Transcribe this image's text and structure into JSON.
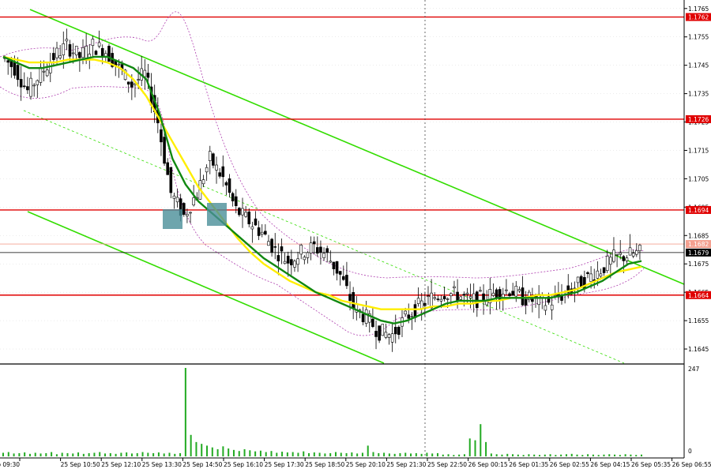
{
  "chart_data": {
    "type": "candlestick",
    "price_axis": {
      "ylim": [
        1.164,
        1.1768
      ],
      "ticks": [
        "1.1765",
        "1.1755",
        "1.1745",
        "1.1735",
        "1.1725",
        "1.1715",
        "1.1705",
        "1.1695",
        "1.1685",
        "1.1675",
        "1.1665",
        "1.1655",
        "1.1645"
      ],
      "tick_values": [
        1.1765,
        1.1755,
        1.1745,
        1.1735,
        1.1725,
        1.1715,
        1.1705,
        1.1695,
        1.1685,
        1.1675,
        1.1665,
        1.1655,
        1.1645
      ]
    },
    "time_axis": {
      "labels": [
        "25 Sep 09:30",
        "25 Sep 10:50",
        "25 Sep 12:10",
        "25 Sep 13:30",
        "25 Sep 14:50",
        "25 Sep 16:10",
        "25 Sep 17:30",
        "25 Sep 18:50",
        "25 Sep 20:10",
        "25 Sep 21:30",
        "25 Sep 22:50",
        "26 Sep 00:15",
        "26 Sep 01:35",
        "26 Sep 02:55",
        "26 Sep 04:15",
        "26 Sep 05:35",
        "26 Sep 06:55"
      ]
    },
    "levels": [
      {
        "label": "1.1762",
        "value": 1.1762,
        "color": "#e00000"
      },
      {
        "label": "1.1726",
        "value": 1.1726,
        "color": "#e00000"
      },
      {
        "label": "1.1694",
        "value": 1.1694,
        "color": "#e00000"
      },
      {
        "label": "1.1664",
        "value": 1.1664,
        "color": "#e00000"
      }
    ],
    "current_levels": [
      {
        "label": "1.1682",
        "value": 1.1682,
        "color": "#f4a090"
      },
      {
        "label": "1.1679",
        "value": 1.1679,
        "color": "#000000"
      }
    ],
    "price_series": [
      1.1748,
      1.1744,
      1.1736,
      1.1742,
      1.1748,
      1.1752,
      1.1748,
      1.1752,
      1.175,
      1.1744,
      1.1738,
      1.1742,
      1.1725,
      1.17,
      1.1692,
      1.17,
      1.1712,
      1.1705,
      1.1694,
      1.169,
      1.1686,
      1.168,
      1.1676,
      1.1679,
      1.1681,
      1.1678,
      1.1671,
      1.166,
      1.1656,
      1.1651,
      1.165,
      1.1656,
      1.166,
      1.1663,
      1.1665,
      1.1664,
      1.1662,
      1.1663,
      1.1665,
      1.1666,
      1.1663,
      1.1662,
      1.1661,
      1.1664,
      1.1667,
      1.167,
      1.1673,
      1.1677,
      1.1678,
      1.1679
    ],
    "fast_ma_series": [
      1.1748,
      1.1746,
      1.1744,
      1.1744,
      1.1745,
      1.1746,
      1.1747,
      1.1748,
      1.1748,
      1.1746,
      1.1744,
      1.174,
      1.1728,
      1.1712,
      1.1703,
      1.1697,
      1.1693,
      1.1689,
      1.1685,
      1.1681,
      1.1677,
      1.1674,
      1.1671,
      1.1668,
      1.1665,
      1.1663,
      1.1661,
      1.1659,
      1.1657,
      1.1655,
      1.1654,
      1.1655,
      1.1657,
      1.1659,
      1.1661,
      1.1662,
      1.1662,
      1.1662,
      1.1663,
      1.1663,
      1.1663,
      1.1663,
      1.1663,
      1.1664,
      1.1665,
      1.1667,
      1.1669,
      1.1672,
      1.1675,
      1.1676
    ],
    "slow_ma_series": [
      1.1748,
      1.1747,
      1.1746,
      1.1746,
      1.1746,
      1.1747,
      1.1747,
      1.1747,
      1.1746,
      1.1744,
      1.174,
      1.1734,
      1.1726,
      1.1718,
      1.171,
      1.1702,
      1.1696,
      1.169,
      1.1684,
      1.1679,
      1.1675,
      1.1672,
      1.1669,
      1.1667,
      1.1665,
      1.1664,
      1.1662,
      1.1661,
      1.166,
      1.1659,
      1.1659,
      1.1659,
      1.1659,
      1.166,
      1.166,
      1.1661,
      1.1661,
      1.1662,
      1.1662,
      1.1663,
      1.1663,
      1.1664,
      1.1664,
      1.1665,
      1.1666,
      1.1668,
      1.167,
      1.1672,
      1.1673,
      1.1674
    ],
    "volume_axis": {
      "max_label": "247",
      "min_label": "0",
      "ylim": [
        0,
        247
      ]
    },
    "volume_series": [
      10,
      12,
      8,
      9,
      11,
      7,
      10,
      8,
      9,
      12,
      6,
      10,
      9,
      8,
      11,
      7,
      9,
      10,
      12,
      8,
      9,
      7,
      10,
      11,
      8,
      9,
      12,
      10,
      9,
      11,
      8,
      10,
      7,
      9,
      247,
      60,
      40,
      35,
      30,
      25,
      20,
      28,
      22,
      18,
      15,
      20,
      17,
      14,
      16,
      12,
      15,
      10,
      13,
      11,
      12,
      10,
      14,
      9,
      11,
      10,
      8,
      9,
      12,
      10,
      9,
      11,
      8,
      10,
      30,
      12,
      9,
      10,
      8,
      7,
      9,
      10,
      8,
      9,
      7,
      10,
      8,
      9,
      5,
      6,
      4,
      5,
      6,
      50,
      45,
      90,
      40,
      8,
      6,
      5,
      7,
      6,
      5,
      4,
      6,
      5,
      4,
      5,
      6,
      4,
      5,
      6,
      7,
      5,
      4,
      6,
      5,
      4,
      5,
      6,
      5,
      4,
      6,
      5,
      4,
      5
    ],
    "colors": {
      "background": "#ffffff",
      "grid": "#d8d8d8",
      "candle": "#000000",
      "fast_ma": "#118811",
      "slow_ma": "#ffee00",
      "channel": "#33dd00",
      "bands": "#b040b0",
      "entry_box": "#4a8f99",
      "volume": "#22aa22"
    }
  }
}
